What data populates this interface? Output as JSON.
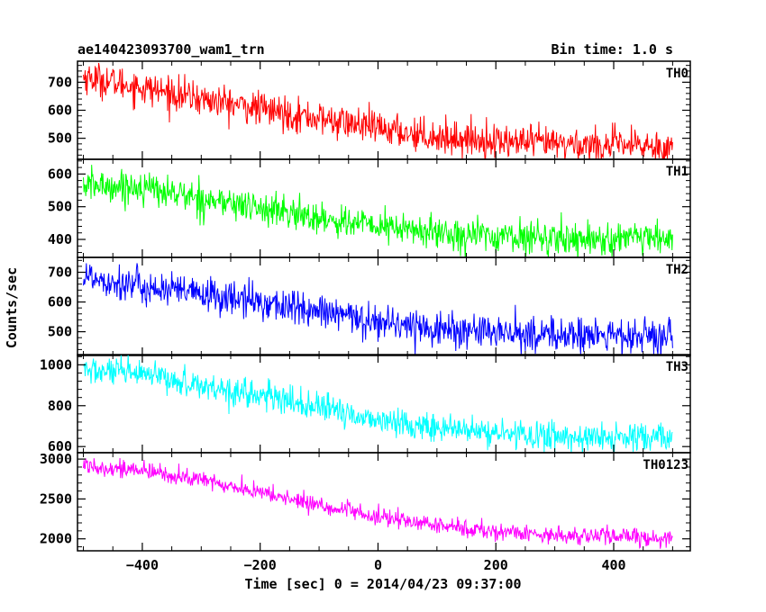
{
  "header": {
    "left_title": "ae140423093700_wam1_trn",
    "right_title": "Bin time: 1.0 s"
  },
  "chart_data": {
    "type": "line",
    "title": "ae140423093700_wam1_trn",
    "subtitle": "Bin time: 1.0 s",
    "xlabel": "Time [sec] 0 = 2014/04/23 09:37:00",
    "ylabel": "Counts/sec",
    "xlim": [
      -510,
      530
    ],
    "x_ticks": [
      -400,
      -200,
      0,
      200,
      400
    ],
    "x_tick_labels": [
      "−400",
      "−200",
      "0",
      "200",
      "400"
    ],
    "x_range_data": [
      -500,
      500
    ],
    "grid": false,
    "legend": "none",
    "series": [
      {
        "name": "TH0",
        "color": "#ff0000",
        "ylim": [
          425,
          775
        ],
        "y_ticks": [
          500,
          600,
          700
        ],
        "trend": [
          {
            "x": -500,
            "y": 720
          },
          {
            "x": -400,
            "y": 680
          },
          {
            "x": -300,
            "y": 640
          },
          {
            "x": -200,
            "y": 605
          },
          {
            "x": -100,
            "y": 570
          },
          {
            "x": 0,
            "y": 535
          },
          {
            "x": 100,
            "y": 505
          },
          {
            "x": 200,
            "y": 490
          },
          {
            "x": 300,
            "y": 480
          },
          {
            "x": 400,
            "y": 475
          },
          {
            "x": 500,
            "y": 470
          }
        ],
        "noise": 30
      },
      {
        "name": "TH1",
        "color": "#00ff00",
        "ylim": [
          345,
          645
        ],
        "y_ticks": [
          400,
          500,
          600
        ],
        "trend": [
          {
            "x": -500,
            "y": 565
          },
          {
            "x": -400,
            "y": 560
          },
          {
            "x": -300,
            "y": 525
          },
          {
            "x": -200,
            "y": 495
          },
          {
            "x": -100,
            "y": 465
          },
          {
            "x": 0,
            "y": 440
          },
          {
            "x": 100,
            "y": 420
          },
          {
            "x": 200,
            "y": 410
          },
          {
            "x": 300,
            "y": 405
          },
          {
            "x": 400,
            "y": 400
          },
          {
            "x": 500,
            "y": 400
          }
        ],
        "noise": 25
      },
      {
        "name": "TH2",
        "color": "#0000ff",
        "ylim": [
          420,
          750
        ],
        "y_ticks": [
          500,
          600,
          700
        ],
        "trend": [
          {
            "x": -500,
            "y": 690
          },
          {
            "x": -400,
            "y": 650
          },
          {
            "x": -300,
            "y": 625
          },
          {
            "x": -200,
            "y": 600
          },
          {
            "x": -100,
            "y": 565
          },
          {
            "x": 0,
            "y": 535
          },
          {
            "x": 100,
            "y": 510
          },
          {
            "x": 200,
            "y": 495
          },
          {
            "x": 300,
            "y": 490
          },
          {
            "x": 400,
            "y": 485
          },
          {
            "x": 500,
            "y": 480
          }
        ],
        "noise": 30
      },
      {
        "name": "TH3",
        "color": "#00ffff",
        "ylim": [
          570,
          1050
        ],
        "y_ticks": [
          600,
          800,
          1000
        ],
        "trend": [
          {
            "x": -500,
            "y": 975
          },
          {
            "x": -400,
            "y": 950
          },
          {
            "x": -300,
            "y": 900
          },
          {
            "x": -200,
            "y": 850
          },
          {
            "x": -100,
            "y": 790
          },
          {
            "x": 0,
            "y": 730
          },
          {
            "x": 100,
            "y": 690
          },
          {
            "x": 200,
            "y": 665
          },
          {
            "x": 300,
            "y": 650
          },
          {
            "x": 400,
            "y": 640
          },
          {
            "x": 500,
            "y": 640
          }
        ],
        "noise": 35
      },
      {
        "name": "TH0123",
        "color": "#ff00ff",
        "ylim": [
          1850,
          3080
        ],
        "y_ticks": [
          2000,
          2500,
          3000
        ],
        "trend": [
          {
            "x": -500,
            "y": 2930
          },
          {
            "x": -400,
            "y": 2850
          },
          {
            "x": -300,
            "y": 2740
          },
          {
            "x": -200,
            "y": 2580
          },
          {
            "x": -100,
            "y": 2420
          },
          {
            "x": 0,
            "y": 2270
          },
          {
            "x": 100,
            "y": 2170
          },
          {
            "x": 200,
            "y": 2090
          },
          {
            "x": 300,
            "y": 2050
          },
          {
            "x": 400,
            "y": 2030
          },
          {
            "x": 500,
            "y": 2010
          }
        ],
        "noise": 55
      }
    ]
  }
}
